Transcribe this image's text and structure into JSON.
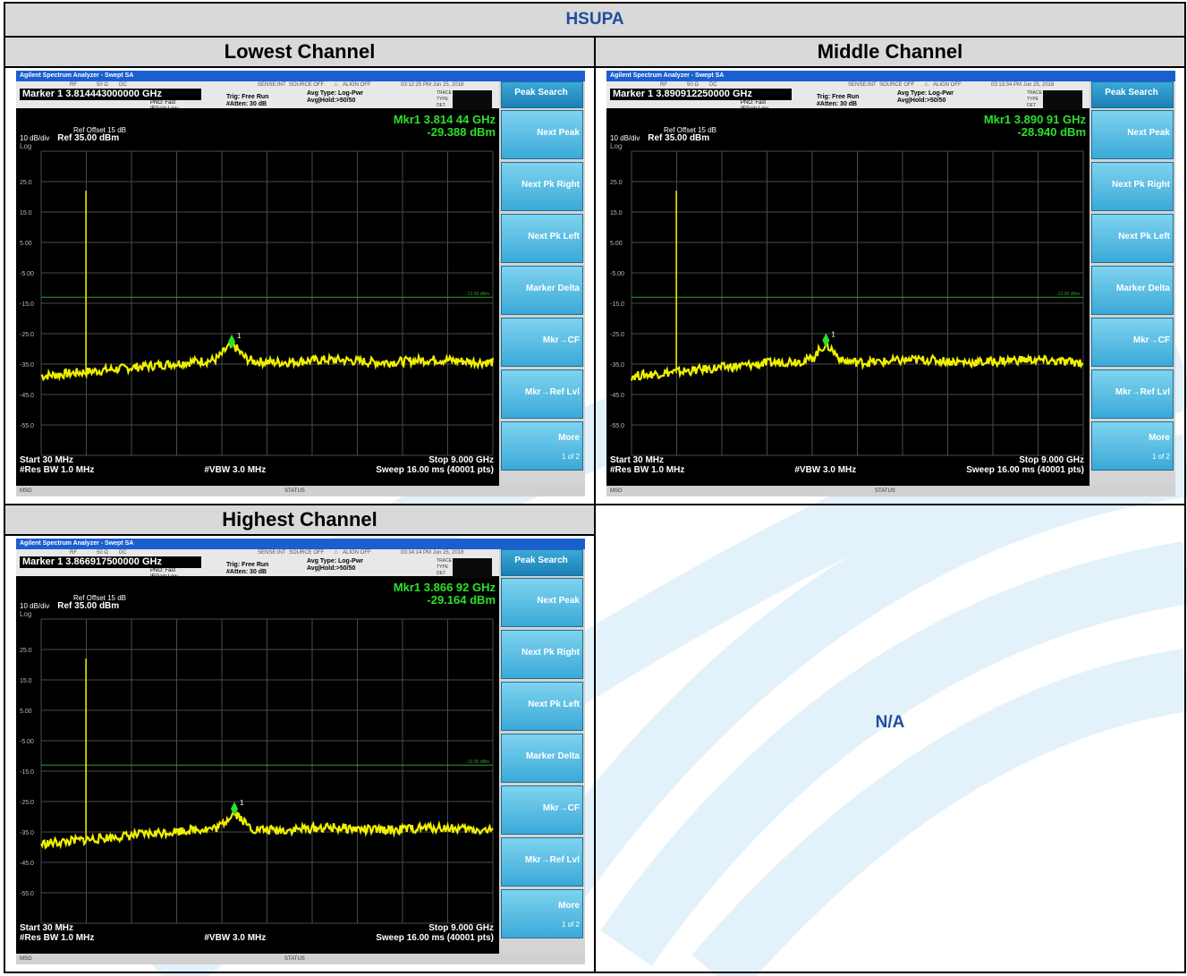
{
  "report": {
    "title": "HSUPA",
    "na_text": "N/A",
    "panels": [
      {
        "channel": "Lowest Channel",
        "app_title": "Agilent Spectrum Analyzer - Swept SA",
        "timestamp": "03:12:25 PM Jun 25, 2018",
        "marker_line": "Marker 1 3.814443000000 GHz",
        "mkr_freq": "Mkr1 3.814 44 GHz",
        "mkr_level": "-29.388 dBm",
        "marker_x_ghz": 3.81444,
        "marker_y_dbm": -29.388
      },
      {
        "channel": "Middle Channel",
        "app_title": "Agilent Spectrum Analyzer - Swept SA",
        "timestamp": "03:13:34 PM Jun 25, 2018",
        "marker_line": "Marker 1 3.890912250000 GHz",
        "mkr_freq": "Mkr1 3.890 91 GHz",
        "mkr_level": "-28.940 dBm",
        "marker_x_ghz": 3.89091,
        "marker_y_dbm": -28.94
      },
      {
        "channel": "Highest Channel",
        "app_title": "Agilent Spectrum Analyzer - Swept SA",
        "timestamp": "03:14:14 PM Jun 25, 2018",
        "marker_line": "Marker 1 3.866917500000 GHz",
        "mkr_freq": "Mkr1 3.866 92 GHz",
        "mkr_level": "-29.164 dBm",
        "marker_x_ghz": 3.86692,
        "marker_y_dbm": -29.164
      }
    ]
  },
  "analyzer_common": {
    "strip": {
      "rf": "RF",
      "ohm": "50 Ω",
      "dc": "DC",
      "sense": "SENSE:INT",
      "source": "SOURCE OFF",
      "align": "ALIGN OFF"
    },
    "pno": "PNO: Fast",
    "ifgain": "IFGain:Low",
    "trig": "Trig: Free Run",
    "atten": "#Atten: 30 dB",
    "avg_type": "Avg Type: Log-Pwr",
    "avg_hold": "Avg|Hold:>50/50",
    "trace_labels": {
      "trace": "TRACE",
      "type": "TYPE",
      "det": "DET"
    },
    "ref_offset": "Ref Offset 15 dB",
    "scale": "10 dB/div",
    "ref": "Ref 35.00 dBm",
    "log": "Log",
    "start": "Start 30 MHz",
    "stop": "Stop 9.000 GHz",
    "rbw": "#Res BW 1.0 MHz",
    "vbw": "#VBW 3.0 MHz",
    "sweep": "Sweep  16.00 ms (40001 pts)",
    "msg": "MSG",
    "status": "STATUS",
    "limit_label": "-13.00 dBm",
    "y_ticks": [
      "25.0",
      "15.0",
      "5.00",
      "-5.00",
      "-15.0",
      "-25.0",
      "-35.0",
      "-45.0",
      "-55.0"
    ],
    "softkeys": [
      "Peak Search",
      "Next Peak",
      "Next Pk Right",
      "Next Pk Left",
      "Marker Delta",
      "Mkr→CF",
      "Mkr→Ref Lvl",
      "More"
    ],
    "softkey_more_sub": "1 of 2",
    "trace_color": "#f0f000",
    "marker_color": "#2ce02c"
  },
  "chart_data": {
    "type": "line",
    "x_range_ghz": [
      0.03,
      9.0
    ],
    "y_range_dbm": [
      -65,
      35
    ],
    "limit_dbm": -13.0,
    "series": [
      {
        "name": "",
        "approx_points": [
          [
            0.03,
            -39
          ],
          [
            0.9,
            -37
          ],
          [
            0.92,
            22
          ],
          [
            0.95,
            -37
          ],
          [
            2.0,
            -36
          ],
          [
            3.0,
            -34
          ],
          [
            3.81,
            -29.4
          ],
          [
            4.5,
            -34
          ],
          [
            6.0,
            -35
          ],
          [
            9.0,
            -34
          ]
        ]
      }
    ]
  }
}
